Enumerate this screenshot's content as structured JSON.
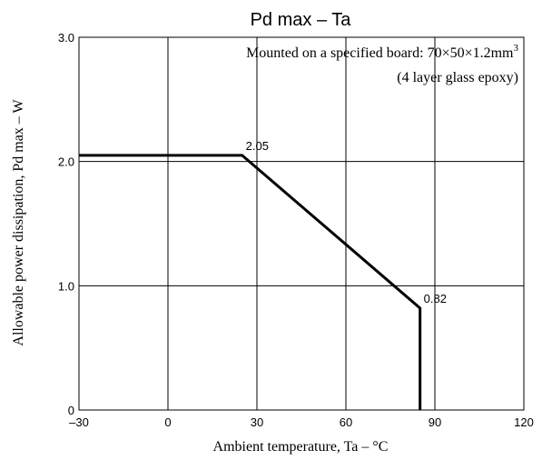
{
  "chart_data": {
    "type": "line",
    "title": "Pd max  –  Ta",
    "xlabel": "Ambient temperature, Ta  –  °C",
    "ylabel": "Allowable power dissipation, Pd max  –  W",
    "xlim": [
      -30,
      120
    ],
    "ylim": [
      0,
      3.0
    ],
    "x_ticks": [
      -30,
      0,
      30,
      60,
      90,
      120
    ],
    "x_tick_labels": [
      "–30",
      "0",
      "30",
      "60",
      "90",
      "120"
    ],
    "y_ticks": [
      0,
      1.0,
      2.0,
      3.0
    ],
    "y_tick_labels": [
      "0",
      "1.0",
      "2.0",
      "3.0"
    ],
    "grid": true,
    "annotation_line1": "Mounted on a specified board: 70×50×1.2mm",
    "annotation_line1_sup": "3",
    "annotation_line2": "(4 layer glass epoxy)",
    "series": [
      {
        "x": [
          -30,
          25,
          85,
          85
        ],
        "y": [
          2.05,
          2.05,
          0.82,
          0
        ],
        "color": "#000000"
      }
    ],
    "point_labels": [
      {
        "x": 25,
        "y": 2.05,
        "text": "2.05"
      },
      {
        "x": 85,
        "y": 0.82,
        "text": "0.82"
      }
    ]
  }
}
